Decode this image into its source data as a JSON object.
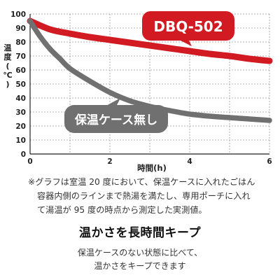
{
  "chart_data": {
    "type": "line",
    "xlabel": "時間(h)",
    "ylabel": "温度(℃)",
    "xlim": [
      0,
      6
    ],
    "ylim": [
      0,
      100
    ],
    "x_ticks": [
      "0",
      "2",
      "4",
      "6"
    ],
    "y_ticks": [
      "0",
      "10",
      "20",
      "30",
      "40",
      "50",
      "60",
      "70",
      "80",
      "90",
      "100"
    ],
    "grid": true,
    "series": [
      {
        "name": "DBQ-502",
        "color": "#d21a22",
        "x": [
          0,
          0.5,
          1,
          1.5,
          2,
          2.5,
          3,
          3.5,
          4,
          4.5,
          5,
          5.5,
          6
        ],
        "y": [
          95,
          89,
          86,
          83.5,
          81.5,
          79.5,
          77.5,
          75.5,
          73.5,
          71.5,
          70,
          68,
          66.5
        ]
      },
      {
        "name": "保温ケース無し",
        "color": "#707070",
        "x": [
          0,
          0.25,
          0.5,
          0.75,
          1,
          1.5,
          2,
          2.5,
          3,
          3.5,
          4,
          4.5,
          5,
          5.5,
          6
        ],
        "y": [
          95,
          84,
          75,
          68,
          61,
          52,
          44,
          38,
          34,
          31,
          28.5,
          27,
          26,
          25,
          24
        ]
      }
    ]
  },
  "note_lines": [
    "※グラフは室温 20 度において、保温ケースに入れたごはん",
    "容器内側のラインまで熱湯を満たし、専用ポーチに入れ",
    "て湯温が 95 度の時点から測定した実測値。"
  ],
  "heading": "温かさを長時間キープ",
  "sub_lines": [
    "保温ケースのない状態に比べて、",
    "温かさをキープできます"
  ]
}
